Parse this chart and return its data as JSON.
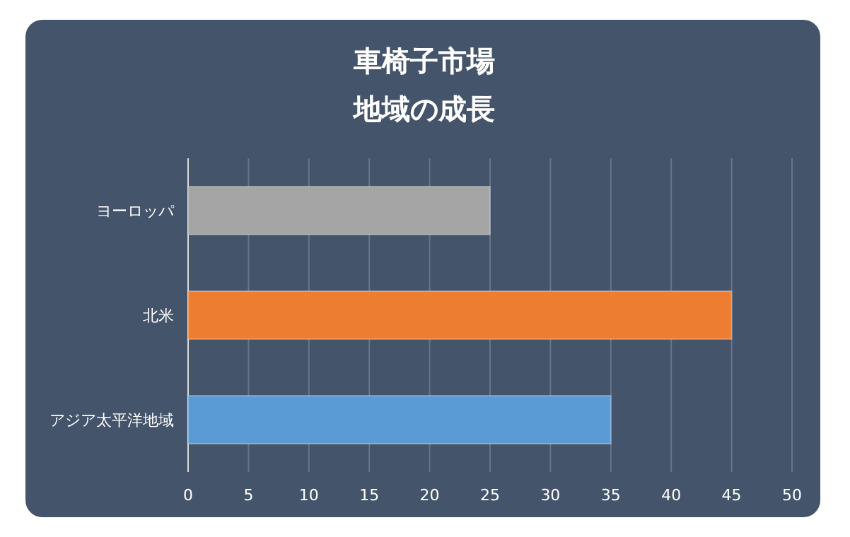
{
  "chart_data": {
    "type": "bar",
    "orientation": "horizontal",
    "title": "車椅子市場",
    "subtitle": "地域の成長",
    "categories": [
      "ヨーロッパ",
      "北米",
      "アジア太平洋地域"
    ],
    "values": [
      25,
      45,
      35
    ],
    "colors": [
      "#a5a5a5",
      "#ed7d31",
      "#5b9bd5"
    ],
    "xlim": [
      0,
      50
    ],
    "xticks": [
      0,
      5,
      10,
      15,
      20,
      25,
      30,
      35,
      40,
      45,
      50
    ],
    "grid": "x"
  }
}
